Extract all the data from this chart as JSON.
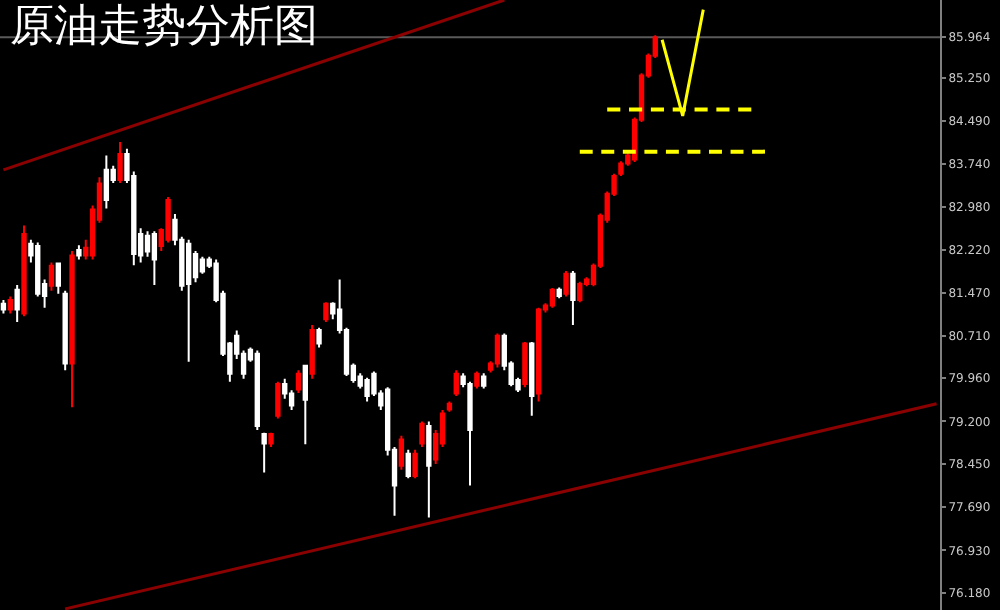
{
  "chart_data": {
    "type": "candlestick",
    "title": "原油走势分析图",
    "categories": [
      null,
      null,
      null,
      null,
      null,
      null,
      null,
      null,
      null,
      null,
      null,
      null,
      null,
      null,
      null,
      null,
      null,
      null,
      null,
      null,
      null,
      null,
      null,
      null,
      null,
      null,
      null,
      null,
      null,
      null,
      null,
      null,
      null,
      null,
      null,
      null,
      null,
      null,
      null,
      null,
      null,
      null,
      null,
      null,
      null,
      null,
      null,
      null,
      null,
      null,
      null,
      null,
      null,
      null,
      null,
      null,
      null,
      null,
      null,
      null,
      null,
      null,
      null,
      null,
      null,
      null,
      null,
      null,
      null,
      null,
      null,
      null,
      null,
      null,
      null,
      null,
      null,
      null,
      null,
      null,
      null,
      null,
      null,
      null,
      null,
      null,
      null,
      null,
      null,
      null,
      null,
      null,
      null,
      null,
      null,
      null,
      null,
      null,
      null,
      null,
      null,
      null,
      null,
      null,
      null,
      null,
      null,
      null,
      null,
      null,
      null,
      null,
      null,
      null,
      null,
      null,
      null,
      null,
      null,
      null,
      null,
      null,
      null,
      null,
      null,
      null,
      null,
      null,
      null,
      null,
      null,
      null,
      null,
      null,
      null,
      null,
      null
    ],
    "ohlc": [
      [
        81.27,
        81.34,
        81.1,
        81.17
      ],
      [
        81.17,
        81.4,
        81.1,
        81.34
      ],
      [
        81.52,
        81.6,
        80.95,
        81.17
      ],
      [
        81.1,
        82.65,
        81.05,
        82.5
      ],
      [
        82.33,
        82.4,
        82.0,
        82.12
      ],
      [
        82.29,
        82.35,
        81.4,
        81.45
      ],
      [
        81.62,
        81.7,
        81.2,
        81.41
      ],
      [
        81.59,
        82.0,
        81.5,
        81.94
      ],
      [
        81.98,
        82.0,
        81.45,
        81.59
      ],
      [
        81.45,
        81.5,
        80.1,
        80.22
      ],
      [
        80.22,
        82.2,
        79.45,
        82.12
      ],
      [
        82.22,
        82.3,
        82.05,
        82.12
      ],
      [
        82.12,
        82.4,
        82.05,
        82.26
      ],
      [
        82.12,
        83.0,
        82.05,
        82.93
      ],
      [
        82.75,
        83.5,
        82.7,
        83.39
      ],
      [
        83.63,
        83.88,
        82.95,
        83.1
      ],
      [
        83.63,
        83.7,
        83.4,
        83.45
      ],
      [
        83.45,
        84.12,
        83.4,
        83.91
      ],
      [
        83.91,
        84.0,
        83.4,
        83.45
      ],
      [
        83.52,
        83.6,
        81.95,
        82.15
      ],
      [
        82.5,
        82.6,
        82.0,
        82.12
      ],
      [
        82.47,
        82.55,
        82.1,
        82.19
      ],
      [
        82.5,
        82.55,
        81.6,
        82.05
      ],
      [
        82.29,
        82.6,
        82.2,
        82.57
      ],
      [
        82.4,
        83.15,
        82.35,
        83.1
      ],
      [
        82.75,
        82.85,
        82.3,
        82.4
      ],
      [
        82.4,
        82.45,
        81.5,
        81.59
      ],
      [
        82.33,
        82.4,
        80.25,
        81.62
      ],
      [
        82.15,
        82.2,
        81.65,
        81.74
      ],
      [
        82.05,
        82.1,
        81.8,
        81.84
      ],
      [
        82.05,
        82.1,
        81.9,
        81.94
      ],
      [
        81.98,
        82.05,
        81.3,
        81.34
      ],
      [
        81.45,
        81.5,
        80.35,
        80.39
      ],
      [
        80.57,
        80.6,
        79.9,
        80.04
      ],
      [
        80.71,
        80.8,
        80.3,
        80.39
      ],
      [
        80.39,
        80.45,
        79.95,
        80.04
      ],
      [
        80.46,
        80.5,
        80.25,
        80.29
      ],
      [
        80.39,
        80.45,
        79.05,
        79.12
      ],
      [
        78.98,
        79.0,
        78.3,
        78.81
      ],
      [
        78.81,
        79.0,
        78.75,
        78.98
      ],
      [
        79.3,
        79.9,
        79.25,
        79.86
      ],
      [
        79.86,
        79.95,
        79.6,
        79.69
      ],
      [
        79.69,
        79.75,
        79.4,
        79.48
      ],
      [
        79.76,
        80.1,
        79.7,
        80.04
      ],
      [
        80.18,
        80.2,
        78.8,
        79.58
      ],
      [
        80.04,
        80.9,
        79.95,
        80.81
      ],
      [
        80.81,
        80.85,
        80.5,
        80.57
      ],
      [
        81.0,
        81.3,
        80.95,
        81.27
      ],
      [
        81.27,
        81.3,
        81.0,
        81.1
      ],
      [
        81.17,
        81.7,
        80.75,
        80.81
      ],
      [
        80.81,
        80.85,
        80.0,
        80.04
      ],
      [
        80.18,
        80.22,
        79.88,
        79.93
      ],
      [
        79.99,
        80.05,
        79.78,
        79.83
      ],
      [
        79.93,
        79.97,
        79.55,
        79.65
      ],
      [
        80.04,
        80.08,
        79.65,
        79.69
      ],
      [
        79.69,
        79.75,
        79.4,
        79.48
      ],
      [
        79.76,
        79.8,
        78.6,
        78.7
      ],
      [
        78.7,
        78.75,
        77.54,
        78.07
      ],
      [
        78.42,
        78.95,
        78.35,
        78.88
      ],
      [
        78.63,
        78.7,
        78.2,
        78.24
      ],
      [
        78.24,
        78.7,
        78.2,
        78.63
      ],
      [
        78.81,
        79.2,
        78.75,
        79.16
      ],
      [
        79.12,
        79.2,
        77.51,
        78.42
      ],
      [
        78.53,
        79.05,
        78.45,
        78.98
      ],
      [
        78.81,
        79.4,
        78.75,
        79.34
      ],
      [
        79.41,
        79.55,
        79.37,
        79.51
      ],
      [
        79.69,
        80.1,
        79.65,
        80.04
      ],
      [
        79.99,
        80.05,
        79.8,
        79.86
      ],
      [
        79.86,
        79.9,
        78.07,
        79.05
      ],
      [
        79.83,
        80.08,
        79.78,
        80.04
      ],
      [
        79.99,
        80.05,
        79.78,
        79.83
      ],
      [
        80.11,
        80.26,
        80.06,
        80.22
      ],
      [
        80.22,
        80.75,
        80.15,
        80.71
      ],
      [
        80.71,
        80.75,
        80.1,
        80.18
      ],
      [
        80.22,
        80.26,
        79.82,
        79.86
      ],
      [
        79.93,
        79.97,
        79.72,
        79.76
      ],
      [
        79.86,
        80.6,
        79.8,
        80.57
      ],
      [
        80.57,
        80.6,
        79.3,
        79.65
      ],
      [
        79.69,
        81.2,
        79.55,
        81.17
      ],
      [
        81.17,
        81.28,
        81.12,
        81.24
      ],
      [
        81.24,
        81.55,
        81.2,
        81.52
      ],
      [
        81.52,
        81.56,
        81.37,
        81.41
      ],
      [
        81.45,
        81.85,
        81.4,
        81.8
      ],
      [
        81.8,
        81.85,
        80.9,
        81.34
      ],
      [
        81.34,
        81.66,
        81.3,
        81.62
      ],
      [
        81.62,
        81.74,
        81.58,
        81.7
      ],
      [
        81.62,
        81.98,
        81.58,
        81.94
      ],
      [
        81.94,
        82.86,
        81.9,
        82.82
      ],
      [
        82.75,
        83.25,
        82.7,
        83.21
      ],
      [
        83.21,
        83.56,
        83.17,
        83.52
      ],
      [
        83.56,
        83.78,
        83.52,
        83.74
      ],
      [
        83.74,
        83.92,
        83.7,
        83.88
      ],
      [
        83.81,
        84.55,
        83.77,
        84.51
      ],
      [
        84.51,
        85.33,
        84.47,
        85.29
      ],
      [
        85.29,
        85.68,
        85.25,
        85.64
      ],
      [
        85.64,
        86.0,
        85.6,
        85.96
      ],
      null,
      null,
      null,
      null,
      null,
      null,
      null,
      null,
      null,
      null,
      null,
      null,
      null,
      null,
      null,
      null,
      null,
      null,
      null,
      null,
      null,
      null,
      null,
      null,
      null,
      null,
      null,
      null,
      null,
      null,
      null,
      null,
      null,
      null,
      null,
      null,
      null,
      null,
      null,
      null,
      null
    ],
    "colors": [
      "#ffffff",
      "#ff0000",
      "#ffffff",
      "#ff0000",
      "#ffffff",
      "#ffffff",
      "#ffffff",
      "#ff0000",
      "#ffffff",
      "#ffffff",
      "#ff0000",
      "#ffffff",
      "#ff0000",
      "#ff0000",
      "#ff0000",
      "#ffffff",
      "#ffffff",
      "#ff0000",
      "#ffffff",
      "#ffffff",
      "#ffffff",
      "#ffffff",
      "#ffffff",
      "#ff0000",
      "#ff0000",
      "#ffffff",
      "#ffffff",
      "#ffffff",
      "#ffffff",
      "#ffffff",
      "#ffffff",
      "#ffffff",
      "#ffffff",
      "#ffffff",
      "#ffffff",
      "#ffffff",
      "#ffffff",
      "#ffffff",
      "#ffffff",
      "#ff0000",
      "#ff0000",
      "#ffffff",
      "#ffffff",
      "#ff0000",
      "#ffffff",
      "#ff0000",
      "#ffffff",
      "#ff0000",
      "#ffffff",
      "#ffffff",
      "#ffffff",
      "#ffffff",
      "#ffffff",
      "#ffffff",
      "#ffffff",
      "#ffffff",
      "#ffffff",
      "#ffffff",
      "#ff0000",
      "#ffffff",
      "#ff0000",
      "#ff0000",
      "#ffffff",
      "#ff0000",
      "#ff0000",
      "#ff0000",
      "#ff0000",
      "#ffffff",
      "#ffffff",
      "#ff0000",
      "#ffffff",
      "#ff0000",
      "#ff0000",
      "#ffffff",
      "#ffffff",
      "#ffffff",
      "#ff0000",
      "#ffffff",
      "#ff0000",
      "#ff0000",
      "#ff0000",
      "#ffffff",
      "#ff0000",
      "#ffffff",
      "#ff0000",
      "#ff0000",
      "#ff0000",
      "#ff0000",
      "#ff0000",
      "#ff0000",
      "#ff0000",
      "#ff0000",
      "#ff0000",
      "#ff0000",
      "#ff0000",
      "#ff0000",
      null,
      null,
      null,
      null,
      null,
      null,
      null,
      null,
      null,
      null,
      null,
      null,
      null,
      null,
      null,
      null,
      null,
      null,
      null,
      null,
      null,
      null,
      null,
      null,
      null,
      null,
      null,
      null,
      null,
      null,
      null,
      null,
      null,
      null,
      null,
      null,
      null,
      null,
      null,
      null,
      null
    ],
    "series": [
      {
        "type": "line",
        "color": "#8b0000",
        "values": [
          83.63,
          null,
          null,
          null,
          null,
          null,
          null,
          null,
          null,
          null,
          null,
          null,
          null,
          null,
          null,
          null,
          null,
          null,
          null,
          null,
          null,
          null,
          null,
          null,
          null,
          null,
          null,
          null,
          null,
          null,
          null,
          null,
          null,
          null,
          null,
          null,
          null,
          null,
          null,
          null,
          null,
          null,
          null,
          null,
          null,
          null,
          null,
          null,
          null,
          null,
          null,
          null,
          null,
          null,
          null,
          null,
          null,
          null,
          null,
          null,
          null,
          null,
          null,
          null,
          null,
          null,
          null,
          null,
          null,
          null,
          null,
          null,
          null,
          86.62,
          null,
          null,
          null,
          null,
          null,
          null,
          null,
          null,
          null,
          null,
          null,
          null,
          null,
          null,
          null,
          null,
          null,
          null,
          null,
          null,
          null,
          null,
          null,
          null,
          null,
          null,
          null,
          null,
          null,
          null,
          null,
          null,
          null,
          null,
          null,
          null,
          null,
          null,
          null,
          null,
          null,
          null,
          null,
          null,
          null,
          null,
          null,
          null,
          null,
          null,
          null,
          null,
          null,
          null,
          null,
          null,
          null,
          null,
          null,
          null,
          null,
          null,
          null
        ]
      },
      {
        "type": "line",
        "color": "#8b0000",
        "values": [
          null,
          null,
          null,
          null,
          null,
          null,
          null,
          null,
          null,
          75.9,
          null,
          null,
          null,
          null,
          null,
          null,
          null,
          null,
          null,
          null,
          null,
          null,
          null,
          null,
          null,
          null,
          null,
          null,
          null,
          null,
          null,
          null,
          null,
          null,
          null,
          null,
          null,
          null,
          null,
          null,
          null,
          null,
          null,
          null,
          null,
          null,
          null,
          null,
          null,
          null,
          null,
          null,
          null,
          null,
          null,
          null,
          null,
          null,
          null,
          null,
          null,
          null,
          null,
          null,
          null,
          null,
          null,
          null,
          null,
          null,
          null,
          null,
          null,
          null,
          null,
          null,
          null,
          null,
          null,
          null,
          null,
          null,
          null,
          null,
          null,
          null,
          null,
          null,
          null,
          null,
          null,
          null,
          null,
          null,
          null,
          null,
          null,
          null,
          null,
          null,
          null,
          null,
          null,
          null,
          null,
          null,
          null,
          null,
          null,
          null,
          null,
          null,
          null,
          null,
          null,
          null,
          null,
          null,
          null,
          null,
          null,
          null,
          null,
          null,
          null,
          null,
          null,
          null,
          null,
          null,
          null,
          null,
          null,
          null,
          null,
          null,
          79.51
        ]
      },
      {
        "type": "line",
        "color": "#ffff00",
        "line_style": "dashed",
        "values": [
          null,
          null,
          null,
          null,
          null,
          null,
          null,
          null,
          null,
          null,
          null,
          null,
          null,
          null,
          null,
          null,
          null,
          null,
          null,
          null,
          null,
          null,
          null,
          null,
          null,
          null,
          null,
          null,
          null,
          null,
          null,
          null,
          null,
          null,
          null,
          null,
          null,
          null,
          null,
          null,
          null,
          null,
          null,
          null,
          null,
          null,
          null,
          null,
          null,
          null,
          null,
          null,
          null,
          null,
          null,
          null,
          null,
          null,
          null,
          null,
          null,
          null,
          null,
          null,
          null,
          null,
          null,
          null,
          null,
          null,
          null,
          null,
          null,
          null,
          null,
          null,
          null,
          null,
          null,
          null,
          null,
          null,
          null,
          null,
          null,
          null,
          null,
          null,
          84.69,
          null,
          null,
          null,
          null,
          null,
          null,
          null,
          null,
          null,
          null,
          null,
          null,
          null,
          null,
          null,
          null,
          null,
          null,
          null,
          null,
          84.69,
          null,
          null,
          null,
          null,
          null,
          null,
          null,
          null,
          null,
          null,
          null,
          null,
          null,
          null,
          null,
          null,
          null,
          null,
          null,
          null,
          null,
          null,
          null,
          null,
          null,
          null,
          null
        ]
      },
      {
        "type": "line",
        "color": "#ffff00",
        "line_style": "dashed",
        "values": [
          null,
          null,
          null,
          null,
          null,
          null,
          null,
          null,
          null,
          null,
          null,
          null,
          null,
          null,
          null,
          null,
          null,
          null,
          null,
          null,
          null,
          null,
          null,
          null,
          null,
          null,
          null,
          null,
          null,
          null,
          null,
          null,
          null,
          null,
          null,
          null,
          null,
          null,
          null,
          null,
          null,
          null,
          null,
          null,
          null,
          null,
          null,
          null,
          null,
          null,
          null,
          null,
          null,
          null,
          null,
          null,
          null,
          null,
          null,
          null,
          null,
          null,
          null,
          null,
          null,
          null,
          null,
          null,
          null,
          null,
          null,
          null,
          null,
          null,
          null,
          null,
          null,
          null,
          null,
          null,
          null,
          null,
          null,
          null,
          83.95,
          null,
          null,
          null,
          null,
          null,
          null,
          null,
          null,
          null,
          null,
          null,
          null,
          null,
          null,
          null,
          null,
          null,
          null,
          null,
          null,
          null,
          null,
          null,
          null,
          null,
          null,
          83.95,
          null,
          null,
          null,
          null,
          null,
          null,
          null,
          null,
          null,
          null,
          null,
          null,
          null,
          null,
          null,
          null,
          null,
          null,
          null,
          null,
          null,
          null,
          null,
          null,
          null
        ]
      },
      {
        "type": "line",
        "color": "#ffff00",
        "values": [
          null,
          null,
          null,
          null,
          null,
          null,
          null,
          null,
          null,
          null,
          null,
          null,
          null,
          null,
          null,
          null,
          null,
          null,
          null,
          null,
          null,
          null,
          null,
          null,
          null,
          null,
          null,
          null,
          null,
          null,
          null,
          null,
          null,
          null,
          null,
          null,
          null,
          null,
          null,
          null,
          null,
          null,
          null,
          null,
          null,
          null,
          null,
          null,
          null,
          null,
          null,
          null,
          null,
          null,
          null,
          null,
          null,
          null,
          null,
          null,
          null,
          null,
          null,
          null,
          null,
          null,
          null,
          null,
          null,
          null,
          null,
          null,
          null,
          null,
          null,
          null,
          null,
          null,
          null,
          null,
          null,
          null,
          null,
          null,
          null,
          null,
          null,
          null,
          null,
          null,
          null,
          null,
          null,
          null,
          null,
          null,
          85.92,
          null,
          null,
          84.58,
          null,
          null,
          86.45,
          null,
          null,
          null,
          null,
          null,
          null,
          null,
          null,
          null,
          null,
          null,
          null,
          null,
          null,
          null,
          null,
          null,
          null,
          null,
          null,
          null,
          null,
          null,
          null,
          null,
          null,
          null,
          null,
          null,
          null,
          null,
          null,
          null,
          null
        ]
      }
    ],
    "ref_lines": [
      {
        "axis": "y",
        "value": 85.964,
        "color": "#5a5a5a"
      }
    ],
    "ylim": [
      75.88,
      86.62
    ],
    "yticks": [
      {
        "value": 85.964,
        "label": "85.964"
      },
      {
        "value": 85.25,
        "label": "85.250"
      },
      {
        "value": 84.49,
        "label": "84.490"
      },
      {
        "value": 83.74,
        "label": "83.740"
      },
      {
        "value": 82.98,
        "label": "82.980"
      },
      {
        "value": 82.22,
        "label": "82.220"
      },
      {
        "value": 81.47,
        "label": "81.470"
      },
      {
        "value": 80.71,
        "label": "80.710"
      },
      {
        "value": 79.96,
        "label": "79.960"
      },
      {
        "value": 79.2,
        "label": "79.200"
      },
      {
        "value": 78.45,
        "label": "78.450"
      },
      {
        "value": 77.69,
        "label": "77.690"
      },
      {
        "value": 76.93,
        "label": "76.930"
      },
      {
        "value": 76.18,
        "label": "76.180"
      }
    ],
    "grid": false,
    "tick_labels": "y"
  }
}
